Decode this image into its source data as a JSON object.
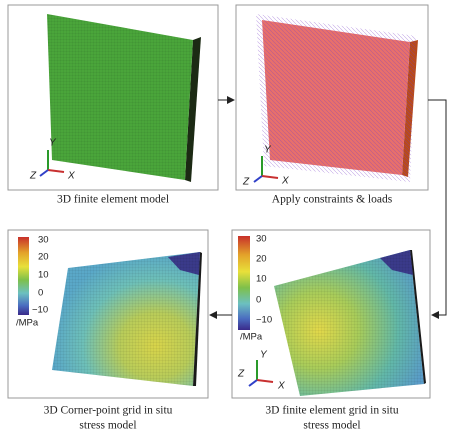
{
  "panels": [
    {
      "caption": [
        "3D finite element model"
      ]
    },
    {
      "caption": [
        "Apply constraints & loads"
      ]
    },
    {
      "caption": [
        "3D finite element grid in situ",
        "stress model"
      ]
    },
    {
      "caption": [
        "3D Corner-point grid in situ",
        "stress model"
      ]
    }
  ],
  "axes": {
    "x": "X",
    "y": "Y",
    "z": "Z"
  },
  "colorbar": {
    "labels": [
      "30",
      "20",
      "10",
      "0",
      "−10"
    ],
    "unit": "/MPa"
  }
}
